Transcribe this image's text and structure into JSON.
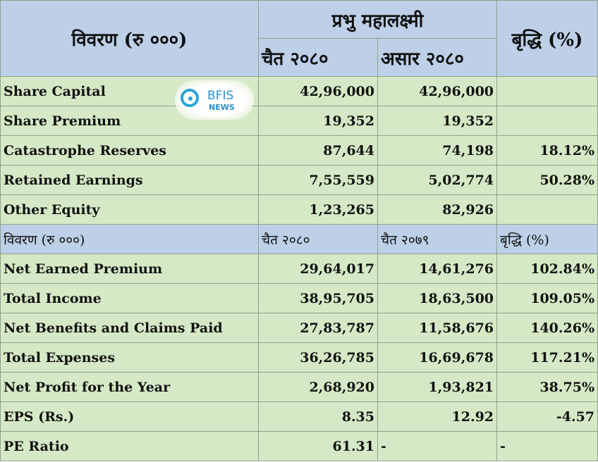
{
  "header": {
    "particulars": "विवरण (रु ०००)",
    "company": "प्रभु महालक्ष्मी",
    "period_a": "चैत २०८०",
    "period_b": "असार २०८०",
    "growth": "बृद्धि (%)"
  },
  "rows_top": [
    {
      "label": "Share Capital",
      "a": "42,96,000",
      "b": "42,96,000",
      "g": ""
    },
    {
      "label": "Share Premium",
      "a": "19,352",
      "b": "19,352",
      "g": ""
    },
    {
      "label": "Catastrophe Reserves",
      "a": "87,644",
      "b": "74,198",
      "g": "18.12%"
    },
    {
      "label": "Retained Earnings",
      "a": "7,55,559",
      "b": "5,02,774",
      "g": "50.28%"
    },
    {
      "label": "Other Equity",
      "a": "1,23,265",
      "b": "82,926",
      "g": ""
    }
  ],
  "mid_header": {
    "particulars": "विवरण (रु ०००)",
    "period_a": "चैत २०८०",
    "period_b": "चैत २०७९",
    "growth": "बृद्धि (%)"
  },
  "rows_bottom": [
    {
      "label": "Net Earned Premium",
      "a": "29,64,017",
      "b": "14,61,276",
      "g": "102.84%"
    },
    {
      "label": "Total Income",
      "a": "38,95,705",
      "b": "18,63,500",
      "g": "109.05%"
    },
    {
      "label": "Net Benefits and Claims Paid",
      "a": "27,83,787",
      "b": "11,58,676",
      "g": "140.26%"
    },
    {
      "label": "Total Expenses",
      "a": "36,26,785",
      "b": "16,69,678",
      "g": "117.21%"
    },
    {
      "label": "Net Profit for the Year",
      "a": "2,68,920",
      "b": "1,93,821",
      "g": "38.75%"
    },
    {
      "label": "EPS (Rs.)",
      "a": "8.35",
      "b": "12.92",
      "g": "-4.57"
    },
    {
      "label": "PE Ratio",
      "a": "61.31",
      "b": "-",
      "g": "-"
    }
  ],
  "logo": {
    "brand": "BFIS",
    "sub": "NEWS",
    "accent": "#2aa6d8"
  }
}
